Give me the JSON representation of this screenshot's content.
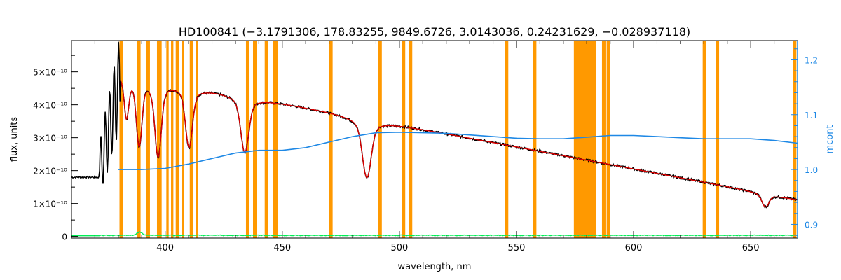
{
  "chart_data": {
    "type": "line",
    "title": "HD100841    (−3.1791306, 178.83255, 9849.6726, 3.0143036, 0.24231629, −0.028937118)",
    "xlabel": "wavelength, nm",
    "ylabel": "flux, units",
    "y2label": "mcont",
    "xlim": [
      360,
      670
    ],
    "ylim": [
      -5e-12,
      5.95e-10
    ],
    "y2lim": [
      0.875,
      1.235
    ],
    "x_ticks": [
      400,
      450,
      500,
      550,
      600,
      650
    ],
    "x_tick_labels": [
      "400",
      "450",
      "500",
      "550",
      "600",
      "650"
    ],
    "y_ticks": [
      0,
      1e-10,
      2e-10,
      3e-10,
      4e-10,
      5e-10
    ],
    "y_tick_labels": [
      "0",
      "1×10⁻¹⁰",
      "2×10⁻¹⁰",
      "3×10⁻¹⁰",
      "4×10⁻¹⁰",
      "5×10⁻¹⁰"
    ],
    "y2_ticks": [
      0.9,
      1.0,
      1.1,
      1.2
    ],
    "y2_tick_labels": [
      "0.9",
      "1.0",
      "1.1",
      "1.2"
    ],
    "grid": false,
    "legend": "none",
    "masked_regions": [
      [
        380.5,
        382
      ],
      [
        388,
        389.5
      ],
      [
        392,
        393.5
      ],
      [
        396.5,
        398.5
      ],
      [
        400.5,
        401.5
      ],
      [
        402.5,
        403.5
      ],
      [
        404.5,
        406
      ],
      [
        407,
        408
      ],
      [
        410.5,
        412
      ],
      [
        413,
        414
      ],
      [
        434.5,
        436
      ],
      [
        437.5,
        439
      ],
      [
        442.5,
        444
      ],
      [
        446,
        448
      ],
      [
        470,
        471.5
      ],
      [
        491,
        492.5
      ],
      [
        501,
        502.5
      ],
      [
        504,
        505.5
      ],
      [
        545,
        546.5
      ],
      [
        557,
        558.5
      ],
      [
        574.5,
        584
      ],
      [
        586.5,
        588
      ],
      [
        588.5,
        590
      ],
      [
        629.5,
        631
      ],
      [
        635,
        636.5
      ],
      [
        668,
        669.5
      ]
    ],
    "continuum_curve": {
      "x": [
        380,
        390,
        400,
        410,
        420,
        430,
        440,
        450,
        460,
        470,
        480,
        490,
        500,
        510,
        520,
        530,
        540,
        550,
        560,
        570,
        580,
        590,
        600,
        610,
        620,
        630,
        640,
        650,
        660,
        670
      ],
      "y": [
        1.0,
        1.0,
        1.002,
        1.01,
        1.02,
        1.03,
        1.035,
        1.035,
        1.04,
        1.05,
        1.06,
        1.067,
        1.068,
        1.067,
        1.066,
        1.063,
        1.06,
        1.057,
        1.056,
        1.056,
        1.059,
        1.062,
        1.062,
        1.06,
        1.058,
        1.056,
        1.056,
        1.056,
        1.053,
        1.048
      ]
    },
    "lines": [
      {
        "center": 383.5,
        "depth": 0.2,
        "width": 0.9
      },
      {
        "center": 388.9,
        "depth": 0.33,
        "width": 1.1
      },
      {
        "center": 397.0,
        "depth": 0.38,
        "width": 1.3
      },
      {
        "center": 410.2,
        "depth": 0.32,
        "width": 1.4
      },
      {
        "center": 434.0,
        "depth": 0.32,
        "width": 1.6
      },
      {
        "center": 486.1,
        "depth": 0.4,
        "width": 1.8
      },
      {
        "center": 656.3,
        "depth": 0.25,
        "width": 1.4
      }
    ],
    "series": [
      {
        "name": "",
        "color": "#000000",
        "desc": "observed flux"
      },
      {
        "name": "",
        "color": "#dd0000",
        "desc": "model fit"
      },
      {
        "name": "",
        "color": "#1e88e5",
        "desc": "mcont"
      },
      {
        "name": "",
        "color": "#00ee55",
        "desc": "residual"
      }
    ]
  },
  "colors": {
    "mask": "#ff9900",
    "axis": "#000000",
    "right_axis": "#1e88e5",
    "fit_accent": "#ffdd00"
  }
}
